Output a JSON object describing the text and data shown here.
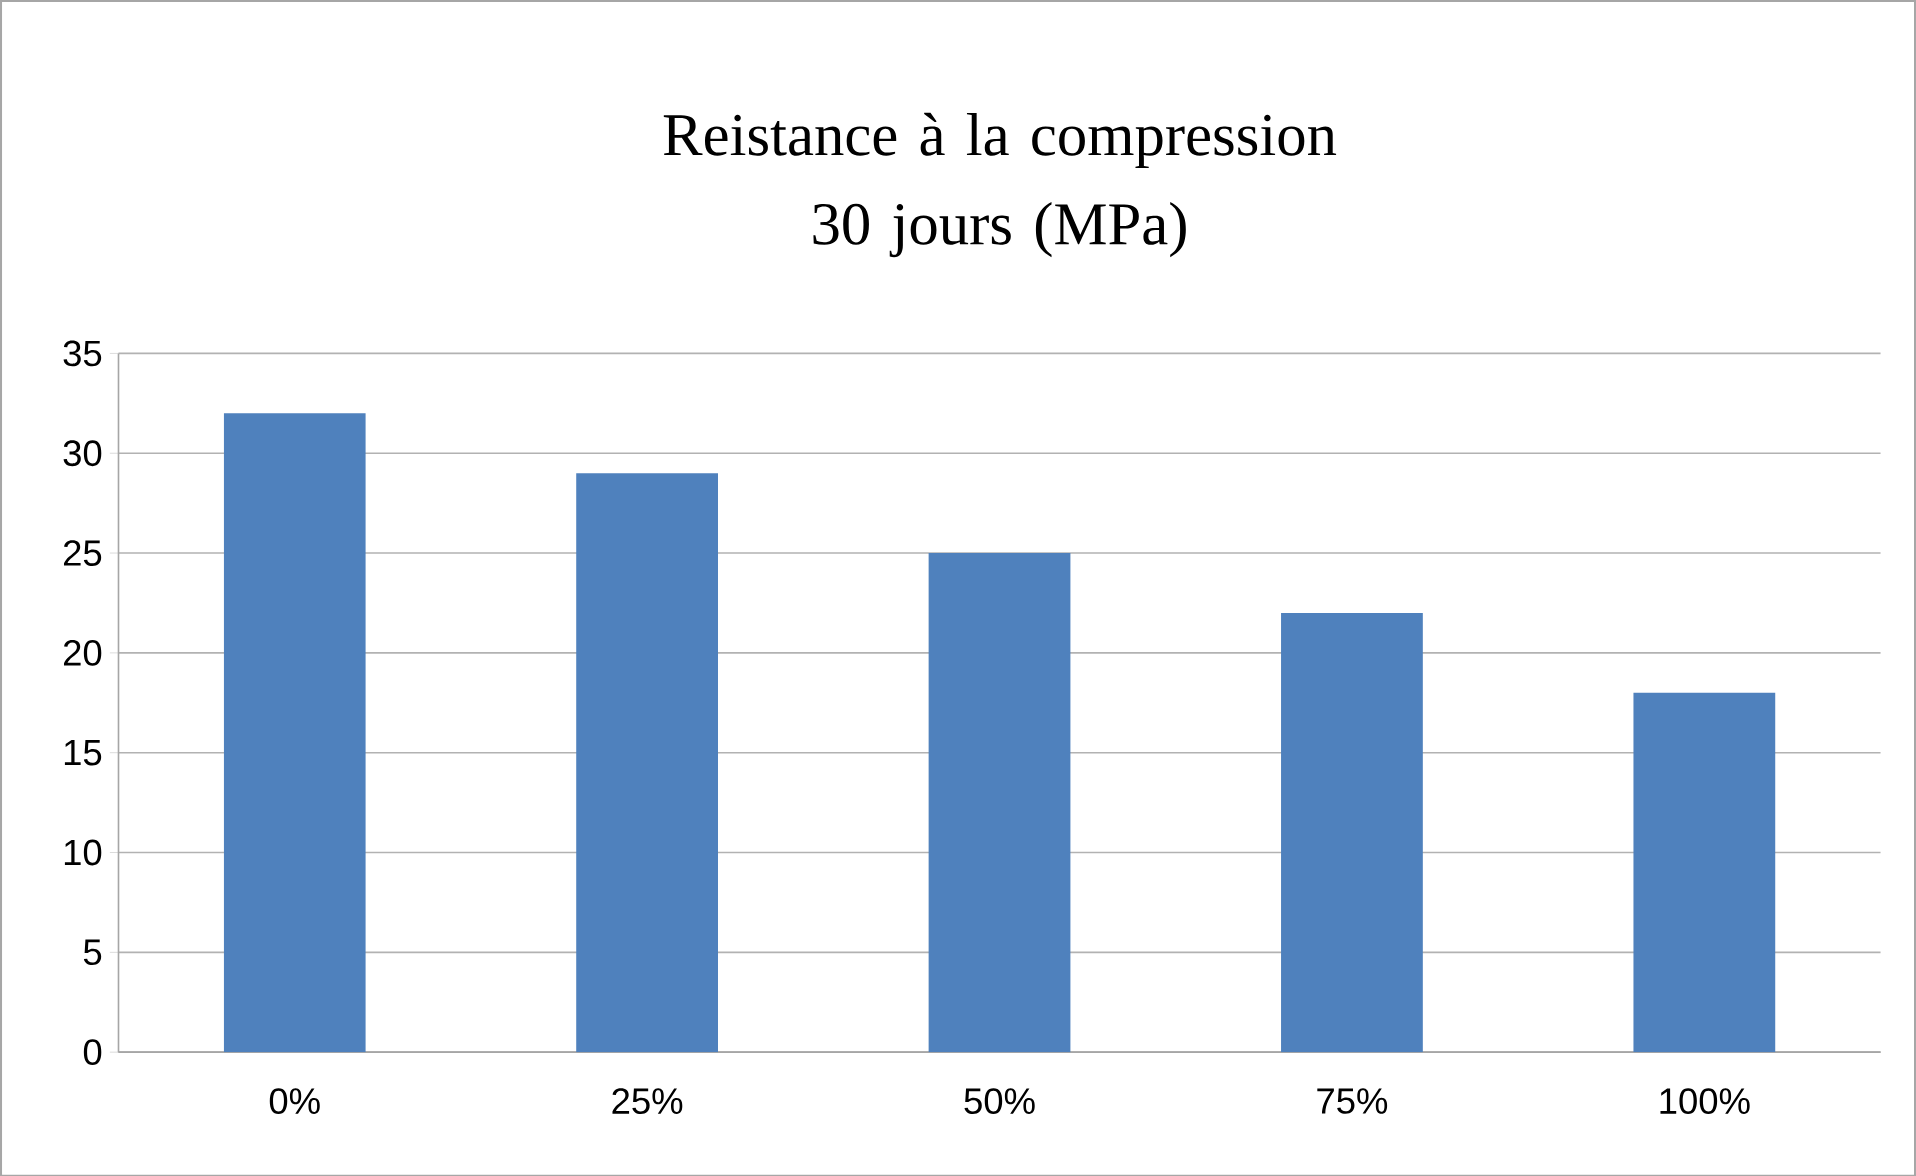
{
  "chart_data": {
    "type": "bar",
    "title": "Reistance à la compression 30 jours (MPa)",
    "categories": [
      "0%",
      "25%",
      "50%",
      "75%",
      "100%"
    ],
    "values": [
      32,
      29,
      25,
      22,
      18
    ],
    "color": "#4f81bd",
    "ylim": [
      0,
      35
    ],
    "yticks": [
      0,
      5,
      10,
      15,
      20,
      25,
      30,
      35
    ],
    "grid": "y"
  }
}
